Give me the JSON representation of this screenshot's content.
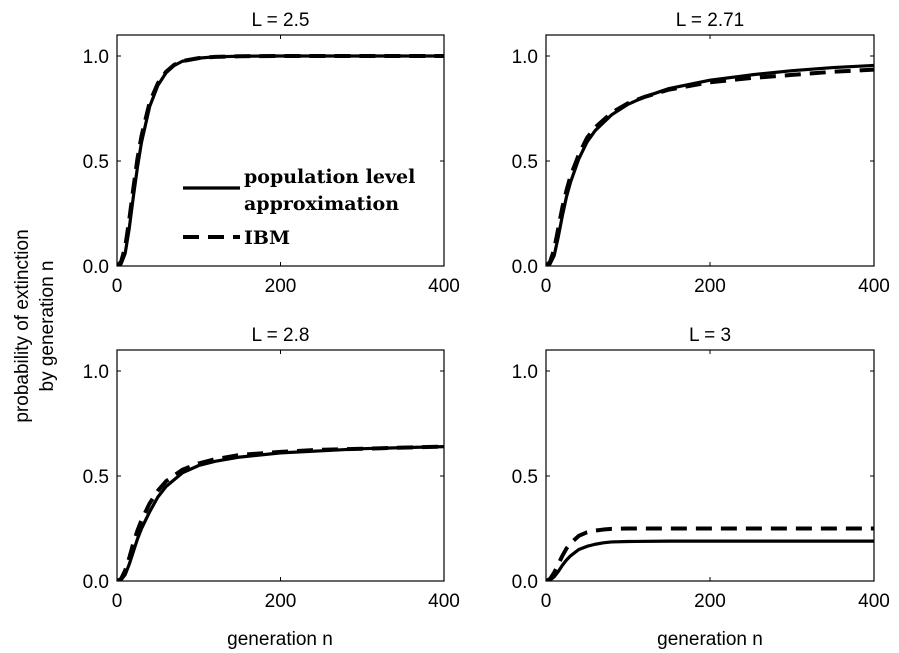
{
  "figure": {
    "ylabel_line1": "probability of extinction",
    "ylabel_line2": "by generation n",
    "xlabel": "generation n"
  },
  "legend": {
    "entries": [
      {
        "lines": [
          "population level",
          "approximation"
        ],
        "style": "solid"
      },
      {
        "lines": [
          "IBM"
        ],
        "style": "dashed"
      }
    ]
  },
  "chart_data": [
    {
      "type": "line",
      "title": "L = 2.5",
      "xlabel": "",
      "ylabel": "",
      "xlim": [
        0,
        400
      ],
      "ylim": [
        0,
        1.1
      ],
      "xticks": [
        0,
        200,
        400
      ],
      "yticks": [
        0.0,
        0.5,
        1.0
      ],
      "xtick_labels": [
        "0",
        "200",
        "400"
      ],
      "ytick_labels": [
        "0.0",
        "0.5",
        "1.0"
      ],
      "series": [
        {
          "name": "population level approximation",
          "style": "solid",
          "x": [
            0,
            5,
            10,
            15,
            20,
            25,
            30,
            40,
            50,
            60,
            70,
            80,
            100,
            120,
            150,
            200,
            300,
            400
          ],
          "y": [
            0,
            0.01,
            0.06,
            0.18,
            0.33,
            0.47,
            0.59,
            0.76,
            0.86,
            0.92,
            0.955,
            0.975,
            0.99,
            0.996,
            0.999,
            1.0,
            1.0,
            1.0
          ]
        },
        {
          "name": "IBM",
          "style": "dashed",
          "x": [
            0,
            5,
            10,
            15,
            20,
            25,
            30,
            40,
            50,
            60,
            70,
            80,
            100,
            120,
            150,
            200,
            300,
            400
          ],
          "y": [
            0,
            0.02,
            0.09,
            0.22,
            0.37,
            0.51,
            0.62,
            0.78,
            0.87,
            0.925,
            0.958,
            0.976,
            0.99,
            0.996,
            0.999,
            1.0,
            1.0,
            1.0
          ]
        }
      ]
    },
    {
      "type": "line",
      "title": "L = 2.71",
      "xlabel": "",
      "ylabel": "",
      "xlim": [
        0,
        400
      ],
      "ylim": [
        0,
        1.1
      ],
      "xticks": [
        0,
        200,
        400
      ],
      "yticks": [
        0.0,
        0.5,
        1.0
      ],
      "xtick_labels": [
        "0",
        "200",
        "400"
      ],
      "ytick_labels": [
        "0.0",
        "0.5",
        "1.0"
      ],
      "series": [
        {
          "name": "population level approximation",
          "style": "solid",
          "x": [
            0,
            5,
            10,
            15,
            20,
            25,
            30,
            40,
            50,
            60,
            80,
            100,
            120,
            150,
            200,
            250,
            300,
            350,
            400
          ],
          "y": [
            0,
            0.01,
            0.05,
            0.14,
            0.24,
            0.33,
            0.4,
            0.51,
            0.59,
            0.645,
            0.72,
            0.77,
            0.805,
            0.845,
            0.885,
            0.91,
            0.93,
            0.945,
            0.955
          ]
        },
        {
          "name": "IBM",
          "style": "dashed",
          "x": [
            0,
            5,
            10,
            15,
            20,
            25,
            30,
            40,
            50,
            60,
            80,
            100,
            120,
            150,
            200,
            250,
            300,
            350,
            400
          ],
          "y": [
            0,
            0.02,
            0.08,
            0.18,
            0.28,
            0.36,
            0.43,
            0.53,
            0.61,
            0.66,
            0.73,
            0.775,
            0.805,
            0.84,
            0.875,
            0.895,
            0.91,
            0.925,
            0.935
          ]
        }
      ]
    },
    {
      "type": "line",
      "title": "L = 2.8",
      "xlabel": "generation n",
      "ylabel": "",
      "xlim": [
        0,
        400
      ],
      "ylim": [
        0,
        1.1
      ],
      "xticks": [
        0,
        200,
        400
      ],
      "yticks": [
        0.0,
        0.5,
        1.0
      ],
      "xtick_labels": [
        "0",
        "200",
        "400"
      ],
      "ytick_labels": [
        "0.0",
        "0.5",
        "1.0"
      ],
      "series": [
        {
          "name": "population level approximation",
          "style": "solid",
          "x": [
            0,
            5,
            10,
            15,
            20,
            25,
            30,
            40,
            50,
            60,
            80,
            100,
            120,
            150,
            200,
            250,
            300,
            350,
            400
          ],
          "y": [
            0,
            0.005,
            0.03,
            0.08,
            0.14,
            0.2,
            0.25,
            0.33,
            0.4,
            0.45,
            0.515,
            0.55,
            0.57,
            0.59,
            0.61,
            0.62,
            0.63,
            0.635,
            0.64
          ]
        },
        {
          "name": "IBM",
          "style": "dashed",
          "x": [
            0,
            5,
            10,
            15,
            20,
            25,
            30,
            40,
            50,
            60,
            80,
            100,
            120,
            150,
            200,
            250,
            300,
            350,
            400
          ],
          "y": [
            0,
            0.01,
            0.05,
            0.11,
            0.18,
            0.24,
            0.29,
            0.37,
            0.43,
            0.475,
            0.53,
            0.56,
            0.58,
            0.6,
            0.615,
            0.625,
            0.63,
            0.635,
            0.64
          ]
        }
      ]
    },
    {
      "type": "line",
      "title": "L = 3",
      "xlabel": "generation n",
      "ylabel": "",
      "xlim": [
        0,
        400
      ],
      "ylim": [
        0,
        1.1
      ],
      "xticks": [
        0,
        200,
        400
      ],
      "yticks": [
        0.0,
        0.5,
        1.0
      ],
      "xtick_labels": [
        "0",
        "200",
        "400"
      ],
      "ytick_labels": [
        "0.0",
        "0.5",
        "1.0"
      ],
      "series": [
        {
          "name": "population level approximation",
          "style": "solid",
          "x": [
            0,
            5,
            10,
            15,
            20,
            25,
            30,
            40,
            50,
            60,
            70,
            80,
            100,
            150,
            200,
            300,
            400
          ],
          "y": [
            0,
            0.005,
            0.02,
            0.045,
            0.075,
            0.1,
            0.12,
            0.15,
            0.165,
            0.175,
            0.182,
            0.186,
            0.188,
            0.19,
            0.19,
            0.19,
            0.19
          ]
        },
        {
          "name": "IBM",
          "style": "dashed",
          "x": [
            0,
            5,
            10,
            15,
            20,
            25,
            30,
            40,
            50,
            60,
            70,
            80,
            100,
            150,
            200,
            300,
            400
          ],
          "y": [
            0,
            0.01,
            0.04,
            0.08,
            0.12,
            0.155,
            0.18,
            0.215,
            0.232,
            0.24,
            0.245,
            0.248,
            0.25,
            0.25,
            0.25,
            0.25,
            0.25
          ]
        }
      ]
    }
  ]
}
